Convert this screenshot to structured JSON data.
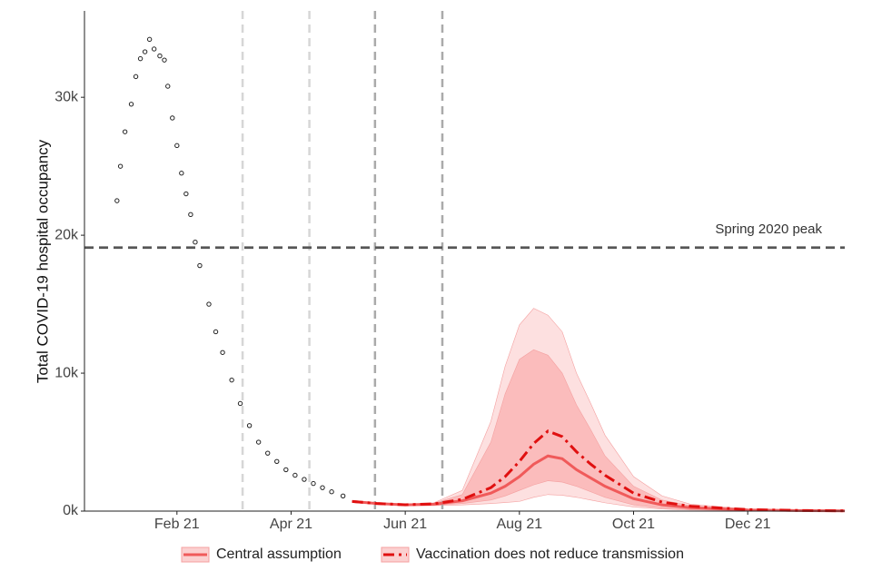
{
  "chart_data": {
    "type": "line",
    "y_label": "Total COVID-19 hospital occupancy",
    "xlim": [
      0.38,
      13.7
    ],
    "xticks": [
      {
        "value": 2,
        "label": "Feb 21"
      },
      {
        "value": 4,
        "label": "Apr 21"
      },
      {
        "value": 6,
        "label": "Jun 21"
      },
      {
        "value": 8,
        "label": "Aug 21"
      },
      {
        "value": 10,
        "label": "Oct 21"
      },
      {
        "value": 12,
        "label": "Dec 21"
      }
    ],
    "ylim": [
      0,
      36000
    ],
    "yticks": [
      {
        "value": 0,
        "label": "0k"
      },
      {
        "value": 10000,
        "label": "10k"
      },
      {
        "value": 20000,
        "label": "20k"
      },
      {
        "value": 30000,
        "label": "30k"
      }
    ],
    "observed": {
      "color": "#222222",
      "x": [
        0.95,
        1.01,
        1.09,
        1.2,
        1.28,
        1.36,
        1.44,
        1.52,
        1.6,
        1.7,
        1.78,
        1.84,
        1.92,
        2.0,
        2.08,
        2.16,
        2.24,
        2.32,
        2.4,
        2.56,
        2.68,
        2.8,
        2.96,
        3.11,
        3.27,
        3.43,
        3.59,
        3.75,
        3.91,
        4.07,
        4.23,
        4.39,
        4.55,
        4.71,
        4.91
      ],
      "values": [
        22500,
        25000,
        27500,
        29500,
        31500,
        32800,
        33300,
        34200,
        33500,
        33000,
        32700,
        30800,
        28500,
        26500,
        24500,
        23000,
        21500,
        19500,
        17800,
        15000,
        13000,
        11500,
        9500,
        7800,
        6200,
        5000,
        4200,
        3600,
        3000,
        2600,
        2300,
        2000,
        1700,
        1400,
        1100
      ]
    },
    "projection_x": [
      5.07,
      5.5,
      6,
      6.5,
      7,
      7.5,
      7.75,
      8,
      8.25,
      8.5,
      8.75,
      9,
      9.25,
      9.5,
      10,
      10.5,
      11,
      12,
      13,
      13.7
    ],
    "bands": [
      {
        "color": "#fde0e0",
        "upper": [
          750,
          600,
          520,
          600,
          1500,
          6500,
          10500,
          13500,
          14700,
          14200,
          13000,
          10000,
          7800,
          5500,
          2500,
          1100,
          500,
          150,
          50,
          25
        ],
        "lower": [
          650,
          500,
          400,
          400,
          450,
          550,
          620,
          700,
          1000,
          1200,
          1150,
          1000,
          800,
          600,
          300,
          150,
          80,
          25,
          10,
          5
        ]
      },
      {
        "color": "#fbbcbc",
        "upper": [
          730,
          580,
          500,
          570,
          1200,
          5000,
          8500,
          11000,
          11700,
          11300,
          10000,
          7700,
          5900,
          4000,
          1800,
          800,
          380,
          120,
          40,
          20
        ],
        "lower": [
          670,
          520,
          420,
          440,
          550,
          800,
          1100,
          1500,
          1900,
          2200,
          2100,
          1800,
          1400,
          1000,
          450,
          220,
          120,
          40,
          15,
          8
        ]
      }
    ],
    "series": [
      {
        "name": "Central assumption",
        "color": "#f05a5a",
        "dash": "solid",
        "values": [
          700,
          550,
          450,
          500,
          750,
          1300,
          1800,
          2500,
          3400,
          4000,
          3800,
          3000,
          2400,
          1800,
          900,
          450,
          250,
          80,
          30,
          20
        ]
      },
      {
        "name": "Vaccination does not reduce transmission",
        "color": "#e01010",
        "dash": "dashdot",
        "values": [
          700,
          550,
          460,
          520,
          850,
          1700,
          2500,
          3600,
          4900,
          5800,
          5400,
          4300,
          3400,
          2600,
          1300,
          650,
          350,
          110,
          40,
          25
        ]
      }
    ],
    "vlines": [
      {
        "x": 3.15,
        "color": "#d6d6d6"
      },
      {
        "x": 4.32,
        "color": "#d6d6d6"
      },
      {
        "x": 5.47,
        "color": "#aaaaaa"
      },
      {
        "x": 6.65,
        "color": "#aaaaaa"
      }
    ],
    "hline": {
      "y": 19100,
      "color": "#555555",
      "label": "Spring 2020 peak"
    },
    "legend": "bottom"
  }
}
